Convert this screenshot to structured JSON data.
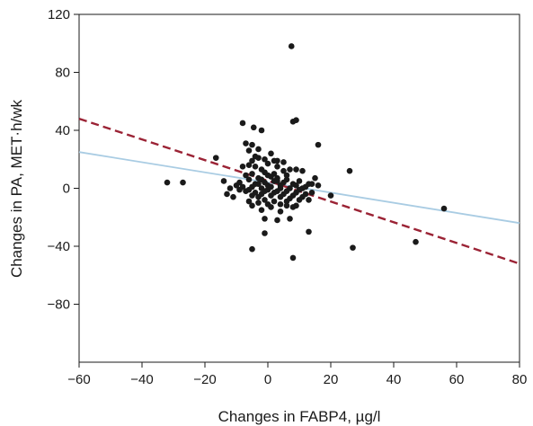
{
  "chart_data": {
    "type": "scatter",
    "xlabel": "Changes in FABP4, µg/l",
    "ylabel": "Changes in PA, MET·h/wk",
    "xlim": [
      -60,
      80
    ],
    "ylim": [
      -120,
      120
    ],
    "xticks": [
      -60,
      -40,
      -20,
      0,
      20,
      40,
      60,
      80
    ],
    "yticks": [
      -80,
      -40,
      0,
      40,
      80,
      120
    ],
    "xtick_labels": [
      "−60",
      "−40",
      "−20",
      "0",
      "20",
      "40",
      "60",
      "80"
    ],
    "ytick_labels": [
      "−80",
      "−40",
      "0",
      "40",
      "80",
      "120"
    ],
    "grid": false,
    "legend": "none",
    "point_color": "#1a1a1a",
    "points": [
      [
        7.5,
        98
      ],
      [
        -8,
        45
      ],
      [
        8,
        46
      ],
      [
        9,
        47
      ],
      [
        -4.5,
        42
      ],
      [
        -2,
        40
      ],
      [
        -16.5,
        21
      ],
      [
        16,
        30
      ],
      [
        26,
        12
      ],
      [
        -32,
        4
      ],
      [
        -27,
        4
      ],
      [
        -14,
        5
      ],
      [
        -12,
        0
      ],
      [
        -11,
        -6
      ],
      [
        -13,
        -4
      ],
      [
        -9,
        -1
      ],
      [
        -7,
        31
      ],
      [
        -5,
        30
      ],
      [
        -3,
        27
      ],
      [
        -6,
        26
      ],
      [
        -1,
        20
      ],
      [
        1,
        24
      ],
      [
        -3,
        21
      ],
      [
        -5,
        19
      ],
      [
        -8,
        15
      ],
      [
        -4,
        15
      ],
      [
        -2,
        13
      ],
      [
        0,
        17
      ],
      [
        2,
        10
      ],
      [
        3,
        15
      ],
      [
        5,
        18
      ],
      [
        3,
        19
      ],
      [
        7,
        13
      ],
      [
        6,
        9
      ],
      [
        9,
        13
      ],
      [
        11,
        12
      ],
      [
        15,
        7
      ],
      [
        16,
        2
      ],
      [
        13,
        3
      ],
      [
        -7,
        9
      ],
      [
        -6,
        6
      ],
      [
        -5,
        10
      ],
      [
        -4,
        3
      ],
      [
        -3,
        7
      ],
      [
        -2,
        0
      ],
      [
        -1,
        4
      ],
      [
        0,
        9
      ],
      [
        1,
        1
      ],
      [
        2,
        5
      ],
      [
        3,
        7
      ],
      [
        4,
        0
      ],
      [
        5,
        4
      ],
      [
        6,
        6
      ],
      [
        7,
        0
      ],
      [
        8,
        3
      ],
      [
        9,
        2
      ],
      [
        10,
        5
      ],
      [
        11,
        0
      ],
      [
        12,
        1
      ],
      [
        14,
        3
      ],
      [
        -8,
        1
      ],
      [
        -7,
        -2
      ],
      [
        -6,
        -1
      ],
      [
        -5,
        -5
      ],
      [
        -4,
        -3
      ],
      [
        -3,
        -6
      ],
      [
        -2,
        -4
      ],
      [
        -1,
        -2
      ],
      [
        0,
        -1
      ],
      [
        1,
        -5
      ],
      [
        2,
        -3
      ],
      [
        3,
        -2
      ],
      [
        4,
        -6
      ],
      [
        5,
        -4
      ],
      [
        6,
        -2
      ],
      [
        7,
        -7
      ],
      [
        8,
        -5
      ],
      [
        9,
        -3
      ],
      [
        10,
        -1
      ],
      [
        11,
        -6
      ],
      [
        12,
        -4
      ],
      [
        13,
        -8
      ],
      [
        -6,
        -9
      ],
      [
        -5,
        -12
      ],
      [
        -3,
        -10
      ],
      [
        -1,
        -8
      ],
      [
        0,
        -11
      ],
      [
        2,
        -9
      ],
      [
        4,
        -11
      ],
      [
        6,
        -12
      ],
      [
        8,
        -13
      ],
      [
        10,
        -8
      ],
      [
        -2,
        -15
      ],
      [
        4,
        -16
      ],
      [
        9,
        -12
      ],
      [
        -3,
        3
      ],
      [
        -1,
        11
      ],
      [
        1,
        8
      ],
      [
        4,
        2
      ],
      [
        5,
        12
      ],
      [
        -4,
        22
      ],
      [
        2,
        19
      ],
      [
        -6,
        16
      ],
      [
        1,
        -13
      ],
      [
        3,
        5
      ],
      [
        -9,
        4
      ],
      [
        14,
        -3
      ],
      [
        20,
        -5
      ],
      [
        -10,
        2
      ],
      [
        -1,
        -21
      ],
      [
        3,
        -22
      ],
      [
        7,
        -21
      ],
      [
        13,
        -30
      ],
      [
        -1,
        -31
      ],
      [
        -5,
        -42
      ],
      [
        8,
        -48
      ],
      [
        27,
        -41
      ],
      [
        47,
        -37
      ],
      [
        56,
        -14
      ],
      [
        -2,
        6
      ],
      [
        0,
        2
      ],
      [
        -5,
        1
      ],
      [
        6,
        -9
      ]
    ],
    "trend_lines": [
      {
        "style": "solid",
        "color": "#a9cce3",
        "start": [
          -60,
          25
        ],
        "end": [
          80,
          -24
        ]
      },
      {
        "style": "dashed",
        "color": "#9b2335",
        "start": [
          -60,
          48
        ],
        "end": [
          80,
          -52
        ]
      }
    ]
  }
}
